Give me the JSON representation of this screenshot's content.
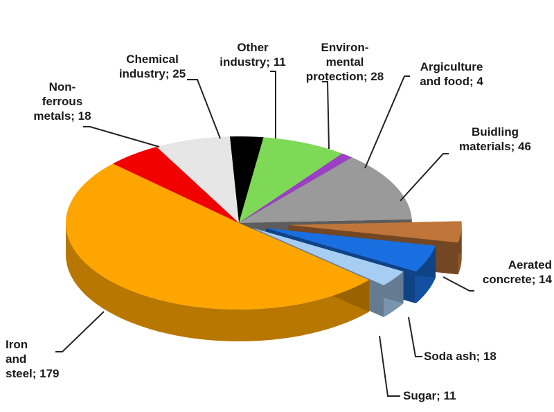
{
  "chart_data": {
    "type": "pie",
    "labels": [
      "Other\nindustry; 11",
      "Environ-\nmental\nprotection; 28",
      "Argiculture\nand food; 4",
      "Buidling\nmaterials; 46",
      "Aerated\nconcrete; 14",
      "Soda ash; 18",
      "Sugar; 11",
      "Iron\nand\nsteel; 179",
      "Non-\nferrous\nmetals; 18",
      "Chemical\nindustry; 25"
    ],
    "values": [
      11,
      28,
      4,
      46,
      14,
      18,
      11,
      179,
      18,
      25
    ],
    "colors": [
      "#000000",
      "#7ed957",
      "#9b3fc4",
      "#9a9a9a",
      "#c0763a",
      "#1a6fe0",
      "#a7cdf2",
      "#ffa500",
      "#f20000",
      "#e6e6e6"
    ]
  }
}
